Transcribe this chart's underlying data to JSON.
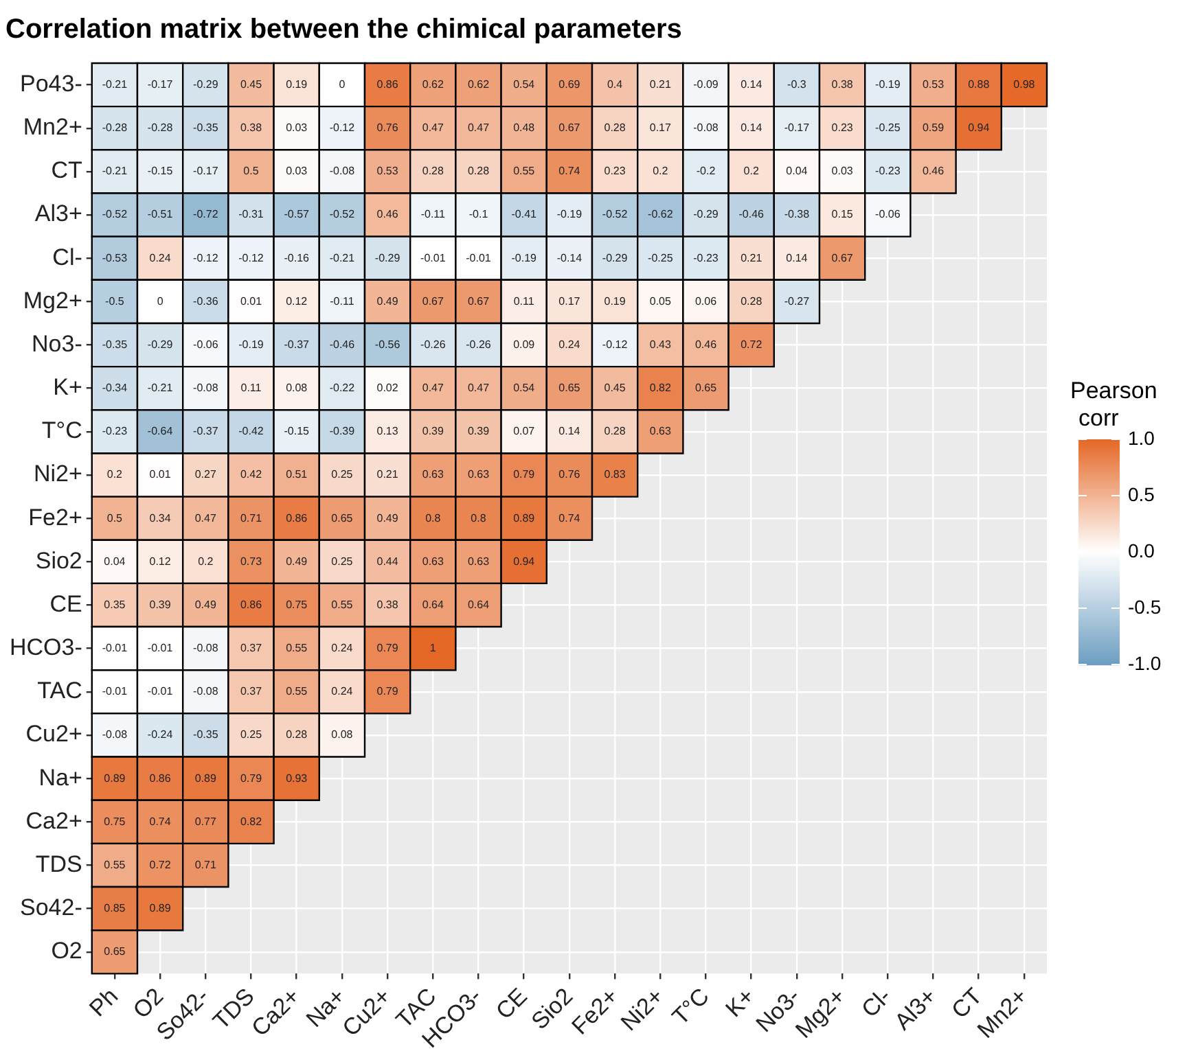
{
  "chart_data": {
    "type": "heatmap",
    "title": "Correlation matrix between the chimical parameters",
    "legend_title": "Pearson corr",
    "categories": [
      "Ph",
      "O2",
      "So42-",
      "TDS",
      "Ca2+",
      "Na+",
      "Cu2+",
      "TAC",
      "HCO3-",
      "CE",
      "Sio2",
      "Fe2+",
      "Ni2+",
      "T°C",
      "K+",
      "No3-",
      "Mg2+",
      "Cl-",
      "Al3+",
      "CT",
      "Mn2+"
    ],
    "y_categories": [
      "Po43-",
      "Mn2+",
      "CT",
      "Al3+",
      "Cl-",
      "Mg2+",
      "No3-",
      "K+",
      "T°C",
      "Ni2+",
      "Fe2+",
      "Sio2",
      "CE",
      "HCO3-",
      "TAC",
      "Cu2+",
      "Na+",
      "Ca2+",
      "TDS",
      "So42-",
      "O2"
    ],
    "cells": [
      [
        -0.21,
        -0.17,
        -0.29,
        0.45,
        0.19,
        0,
        0.86,
        0.62,
        0.62,
        0.54,
        0.69,
        0.4,
        0.21,
        -0.09,
        0.14,
        -0.3,
        0.38,
        -0.19,
        0.53,
        0.88,
        0.98
      ],
      [
        -0.28,
        -0.28,
        -0.35,
        0.38,
        0.03,
        -0.12,
        0.76,
        0.47,
        0.47,
        0.48,
        0.67,
        0.28,
        0.17,
        -0.08,
        0.14,
        -0.17,
        0.23,
        -0.25,
        0.59,
        0.94,
        null
      ],
      [
        -0.21,
        -0.15,
        -0.17,
        0.5,
        0.03,
        -0.08,
        0.53,
        0.28,
        0.28,
        0.55,
        0.74,
        0.23,
        0.2,
        -0.2,
        0.2,
        0.04,
        0.03,
        -0.23,
        0.46,
        null,
        null
      ],
      [
        -0.52,
        -0.51,
        -0.72,
        -0.31,
        -0.57,
        -0.52,
        0.46,
        -0.11,
        -0.1,
        -0.41,
        -0.19,
        -0.52,
        -0.62,
        -0.29,
        -0.46,
        -0.38,
        0.15,
        -0.06,
        null,
        null,
        null
      ],
      [
        -0.53,
        0.24,
        -0.12,
        -0.12,
        -0.16,
        -0.21,
        -0.29,
        -0.01,
        -0.01,
        -0.19,
        -0.14,
        -0.29,
        -0.25,
        -0.23,
        0.21,
        0.14,
        0.67,
        null,
        null,
        null,
        null
      ],
      [
        -0.5,
        0,
        -0.36,
        0.01,
        0.12,
        -0.11,
        0.49,
        0.67,
        0.67,
        0.11,
        0.17,
        0.19,
        0.05,
        0.06,
        0.28,
        -0.27,
        null,
        null,
        null,
        null,
        null
      ],
      [
        -0.35,
        -0.29,
        -0.06,
        -0.19,
        -0.37,
        -0.46,
        -0.56,
        -0.26,
        -0.26,
        0.09,
        0.24,
        -0.12,
        0.43,
        0.46,
        0.72,
        null,
        null,
        null,
        null,
        null,
        null
      ],
      [
        -0.34,
        -0.21,
        -0.08,
        0.11,
        0.08,
        -0.22,
        0.02,
        0.47,
        0.47,
        0.54,
        0.65,
        0.45,
        0.82,
        0.65,
        null,
        null,
        null,
        null,
        null,
        null,
        null
      ],
      [
        -0.23,
        -0.64,
        -0.37,
        -0.42,
        -0.15,
        -0.39,
        0.13,
        0.39,
        0.39,
        0.07,
        0.14,
        0.28,
        0.63,
        null,
        null,
        null,
        null,
        null,
        null,
        null,
        null
      ],
      [
        0.2,
        0.01,
        0.27,
        0.42,
        0.51,
        0.25,
        0.21,
        0.63,
        0.63,
        0.79,
        0.76,
        0.83,
        null,
        null,
        null,
        null,
        null,
        null,
        null,
        null,
        null
      ],
      [
        0.5,
        0.34,
        0.47,
        0.71,
        0.86,
        0.65,
        0.49,
        0.8,
        0.8,
        0.89,
        0.74,
        null,
        null,
        null,
        null,
        null,
        null,
        null,
        null,
        null,
        null
      ],
      [
        0.04,
        0.12,
        0.2,
        0.73,
        0.49,
        0.25,
        0.44,
        0.63,
        0.63,
        0.94,
        null,
        null,
        null,
        null,
        null,
        null,
        null,
        null,
        null,
        null,
        null
      ],
      [
        0.35,
        0.39,
        0.49,
        0.86,
        0.75,
        0.55,
        0.38,
        0.64,
        0.64,
        null,
        null,
        null,
        null,
        null,
        null,
        null,
        null,
        null,
        null,
        null,
        null
      ],
      [
        -0.01,
        -0.01,
        -0.08,
        0.37,
        0.55,
        0.24,
        0.79,
        1,
        null,
        null,
        null,
        null,
        null,
        null,
        null,
        null,
        null,
        null,
        null,
        null,
        null
      ],
      [
        -0.01,
        -0.01,
        -0.08,
        0.37,
        0.55,
        0.24,
        0.79,
        null,
        null,
        null,
        null,
        null,
        null,
        null,
        null,
        null,
        null,
        null,
        null,
        null,
        null
      ],
      [
        -0.08,
        -0.24,
        -0.35,
        0.25,
        0.28,
        0.08,
        null,
        null,
        null,
        null,
        null,
        null,
        null,
        null,
        null,
        null,
        null,
        null,
        null,
        null,
        null
      ],
      [
        0.89,
        0.86,
        0.89,
        0.79,
        0.93,
        null,
        null,
        null,
        null,
        null,
        null,
        null,
        null,
        null,
        null,
        null,
        null,
        null,
        null,
        null,
        null
      ],
      [
        0.75,
        0.74,
        0.77,
        0.82,
        null,
        null,
        null,
        null,
        null,
        null,
        null,
        null,
        null,
        null,
        null,
        null,
        null,
        null,
        null,
        null,
        null
      ],
      [
        0.55,
        0.72,
        0.71,
        null,
        null,
        null,
        null,
        null,
        null,
        null,
        null,
        null,
        null,
        null,
        null,
        null,
        null,
        null,
        null,
        null,
        null
      ],
      [
        0.85,
        0.89,
        null,
        null,
        null,
        null,
        null,
        null,
        null,
        null,
        null,
        null,
        null,
        null,
        null,
        null,
        null,
        null,
        null,
        null,
        null
      ],
      [
        0.65,
        null,
        null,
        null,
        null,
        null,
        null,
        null,
        null,
        null,
        null,
        null,
        null,
        null,
        null,
        null,
        null,
        null,
        null,
        null,
        null
      ]
    ],
    "clim": [
      -1,
      1
    ],
    "cticks": [
      {
        "value": -1,
        "label": "-1.0"
      },
      {
        "value": -0.5,
        "label": "-0.5"
      },
      {
        "value": 0,
        "label": "0.0"
      },
      {
        "value": 0.5,
        "label": "0.5"
      },
      {
        "value": 1,
        "label": "1.0"
      }
    ],
    "grid": true,
    "data_labels": true
  }
}
